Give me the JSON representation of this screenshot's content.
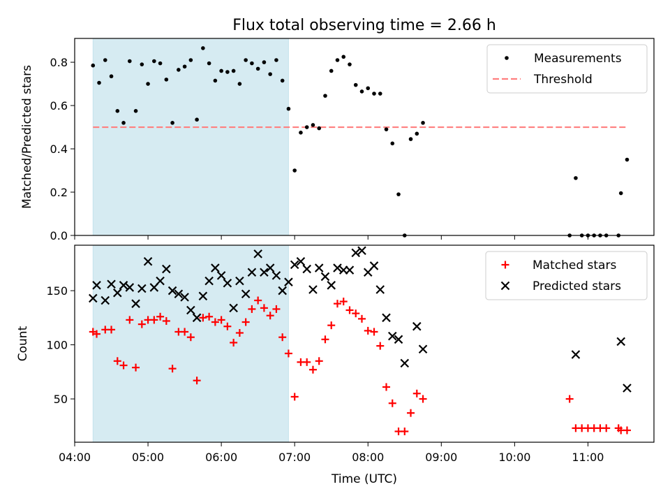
{
  "figure": {
    "title": "Flux total observing time = 2.66 h",
    "xlabel": "Time (UTC)"
  },
  "chart_data": [
    {
      "type": "scatter",
      "ylabel": "Matched/Predicted stars",
      "xlim": [
        "04:00",
        "11:54"
      ],
      "ylim": [
        0,
        0.91
      ],
      "yticks": [
        "0.0",
        "0.2",
        "0.4",
        "0.6",
        "0.8"
      ],
      "ytick_values": [
        0,
        0.2,
        0.4,
        0.6,
        0.8
      ],
      "highlight_span": [
        "04:15",
        "06:55"
      ],
      "legend": "top-right",
      "series": [
        {
          "name": "Measurements",
          "color": "#000000",
          "marker": "dot",
          "points": [
            [
              "04:15",
              0.785
            ],
            [
              "04:20",
              0.705
            ],
            [
              "04:25",
              0.81
            ],
            [
              "04:30",
              0.735
            ],
            [
              "04:35",
              0.575
            ],
            [
              "04:40",
              0.52
            ],
            [
              "04:45",
              0.805
            ],
            [
              "04:50",
              0.575
            ],
            [
              "04:55",
              0.79
            ],
            [
              "05:00",
              0.7
            ],
            [
              "05:05",
              0.805
            ],
            [
              "05:10",
              0.795
            ],
            [
              "05:15",
              0.72
            ],
            [
              "05:20",
              0.52
            ],
            [
              "05:25",
              0.765
            ],
            [
              "05:30",
              0.78
            ],
            [
              "05:35",
              0.81
            ],
            [
              "05:40",
              0.535
            ],
            [
              "05:45",
              0.865
            ],
            [
              "05:50",
              0.795
            ],
            [
              "05:55",
              0.715
            ],
            [
              "06:00",
              0.76
            ],
            [
              "06:05",
              0.755
            ],
            [
              "06:10",
              0.76
            ],
            [
              "06:15",
              0.7
            ],
            [
              "06:20",
              0.81
            ],
            [
              "06:25",
              0.795
            ],
            [
              "06:30",
              0.77
            ],
            [
              "06:35",
              0.8
            ],
            [
              "06:40",
              0.745
            ],
            [
              "06:45",
              0.81
            ],
            [
              "06:50",
              0.715
            ],
            [
              "06:55",
              0.585
            ],
            [
              "07:00",
              0.3
            ],
            [
              "07:05",
              0.475
            ],
            [
              "07:10",
              0.5
            ],
            [
              "07:15",
              0.51
            ],
            [
              "07:20",
              0.495
            ],
            [
              "07:25",
              0.645
            ],
            [
              "07:30",
              0.76
            ],
            [
              "07:35",
              0.81
            ],
            [
              "07:40",
              0.825
            ],
            [
              "07:45",
              0.79
            ],
            [
              "07:50",
              0.695
            ],
            [
              "07:55",
              0.665
            ],
            [
              "08:00",
              0.68
            ],
            [
              "08:05",
              0.655
            ],
            [
              "08:10",
              0.655
            ],
            [
              "08:15",
              0.49
            ],
            [
              "08:20",
              0.425
            ],
            [
              "08:25",
              0.19
            ],
            [
              "08:30",
              0.0
            ],
            [
              "08:35",
              0.445
            ],
            [
              "08:40",
              0.47
            ],
            [
              "08:45",
              0.52
            ],
            [
              "10:45",
              0.0
            ],
            [
              "10:50",
              0.265
            ],
            [
              "10:55",
              0.0
            ],
            [
              "11:00",
              0.0
            ],
            [
              "11:05",
              0.0
            ],
            [
              "11:10",
              0.0
            ],
            [
              "11:15",
              0.0
            ],
            [
              "11:25",
              0.0
            ],
            [
              "11:27",
              0.195
            ],
            [
              "11:32",
              0.35
            ]
          ]
        },
        {
          "name": "Threshold",
          "color": "#ff7f7f",
          "style": "dashed",
          "x": [
            "04:15",
            "11:32"
          ],
          "y": [
            0.5,
            0.5
          ]
        }
      ]
    },
    {
      "type": "scatter",
      "ylabel": "Count",
      "xlim": [
        "04:00",
        "11:54"
      ],
      "ylim": [
        10,
        192
      ],
      "yticks": [
        "50",
        "100",
        "150"
      ],
      "ytick_values": [
        50,
        100,
        150
      ],
      "xticks": [
        "04:00",
        "05:00",
        "06:00",
        "07:00",
        "08:00",
        "09:00",
        "10:00",
        "11:00"
      ],
      "highlight_span": [
        "04:15",
        "06:55"
      ],
      "legend": "top-right",
      "series": [
        {
          "name": "Matched stars",
          "color": "#ff0000",
          "marker": "plus",
          "points": [
            [
              "04:15",
              112
            ],
            [
              "04:18",
              110
            ],
            [
              "04:25",
              114
            ],
            [
              "04:30",
              114
            ],
            [
              "04:35",
              85
            ],
            [
              "04:40",
              81
            ],
            [
              "04:45",
              123
            ],
            [
              "04:50",
              79
            ],
            [
              "04:55",
              119
            ],
            [
              "05:00",
              123
            ],
            [
              "05:05",
              123
            ],
            [
              "05:10",
              126
            ],
            [
              "05:15",
              122
            ],
            [
              "05:20",
              78
            ],
            [
              "05:25",
              112
            ],
            [
              "05:30",
              112
            ],
            [
              "05:35",
              107
            ],
            [
              "05:40",
              67
            ],
            [
              "05:45",
              125
            ],
            [
              "05:50",
              126
            ],
            [
              "05:55",
              121
            ],
            [
              "06:00",
              123
            ],
            [
              "06:05",
              117
            ],
            [
              "06:10",
              102
            ],
            [
              "06:15",
              111
            ],
            [
              "06:20",
              121
            ],
            [
              "06:25",
              133
            ],
            [
              "06:30",
              141
            ],
            [
              "06:35",
              134
            ],
            [
              "06:40",
              127
            ],
            [
              "06:45",
              133
            ],
            [
              "06:50",
              107
            ],
            [
              "06:55",
              92
            ],
            [
              "07:00",
              52
            ],
            [
              "07:05",
              84
            ],
            [
              "07:10",
              84
            ],
            [
              "07:15",
              77
            ],
            [
              "07:20",
              85
            ],
            [
              "07:25",
              105
            ],
            [
              "07:30",
              118
            ],
            [
              "07:35",
              138
            ],
            [
              "07:40",
              140
            ],
            [
              "07:45",
              132
            ],
            [
              "07:50",
              129
            ],
            [
              "07:55",
              124
            ],
            [
              "08:00",
              113
            ],
            [
              "08:05",
              112
            ],
            [
              "08:10",
              99
            ],
            [
              "08:15",
              61
            ],
            [
              "08:20",
              46
            ],
            [
              "08:25",
              20
            ],
            [
              "08:30",
              20
            ],
            [
              "08:35",
              37
            ],
            [
              "08:40",
              55
            ],
            [
              "08:45",
              50
            ],
            [
              "10:45",
              50
            ],
            [
              "10:50",
              23
            ],
            [
              "10:55",
              23
            ],
            [
              "11:00",
              23
            ],
            [
              "11:05",
              23
            ],
            [
              "11:10",
              23
            ],
            [
              "11:15",
              23
            ],
            [
              "11:25",
              23
            ],
            [
              "11:27",
              21
            ],
            [
              "11:32",
              21
            ]
          ]
        },
        {
          "name": "Predicted stars",
          "color": "#000000",
          "marker": "x",
          "points": [
            [
              "04:15",
              143
            ],
            [
              "04:18",
              155
            ],
            [
              "04:25",
              141
            ],
            [
              "04:30",
              156
            ],
            [
              "04:35",
              148
            ],
            [
              "04:40",
              155
            ],
            [
              "04:45",
              153
            ],
            [
              "04:50",
              138
            ],
            [
              "04:55",
              152
            ],
            [
              "05:00",
              177
            ],
            [
              "05:05",
              153
            ],
            [
              "05:10",
              159
            ],
            [
              "05:15",
              170
            ],
            [
              "05:20",
              150
            ],
            [
              "05:25",
              147
            ],
            [
              "05:30",
              144
            ],
            [
              "05:35",
              132
            ],
            [
              "05:40",
              125
            ],
            [
              "05:45",
              145
            ],
            [
              "05:50",
              159
            ],
            [
              "05:55",
              171
            ],
            [
              "06:00",
              164
            ],
            [
              "06:05",
              157
            ],
            [
              "06:10",
              134
            ],
            [
              "06:15",
              159
            ],
            [
              "06:20",
              147
            ],
            [
              "06:25",
              167
            ],
            [
              "06:30",
              184
            ],
            [
              "06:35",
              167
            ],
            [
              "06:40",
              171
            ],
            [
              "06:45",
              164
            ],
            [
              "06:50",
              150
            ],
            [
              "06:55",
              158
            ],
            [
              "07:00",
              174
            ],
            [
              "07:05",
              177
            ],
            [
              "07:10",
              170
            ],
            [
              "07:15",
              151
            ],
            [
              "07:20",
              171
            ],
            [
              "07:25",
              163
            ],
            [
              "07:30",
              155
            ],
            [
              "07:35",
              171
            ],
            [
              "07:40",
              169
            ],
            [
              "07:45",
              169
            ],
            [
              "07:50",
              185
            ],
            [
              "07:55",
              187
            ],
            [
              "08:00",
              167
            ],
            [
              "08:05",
              173
            ],
            [
              "08:10",
              151
            ],
            [
              "08:15",
              125
            ],
            [
              "08:20",
              108
            ],
            [
              "08:25",
              105
            ],
            [
              "08:30",
              83
            ],
            [
              "08:40",
              117
            ],
            [
              "08:45",
              96
            ],
            [
              "10:50",
              91
            ],
            [
              "11:27",
              103
            ],
            [
              "11:32",
              60
            ]
          ]
        }
      ]
    }
  ]
}
